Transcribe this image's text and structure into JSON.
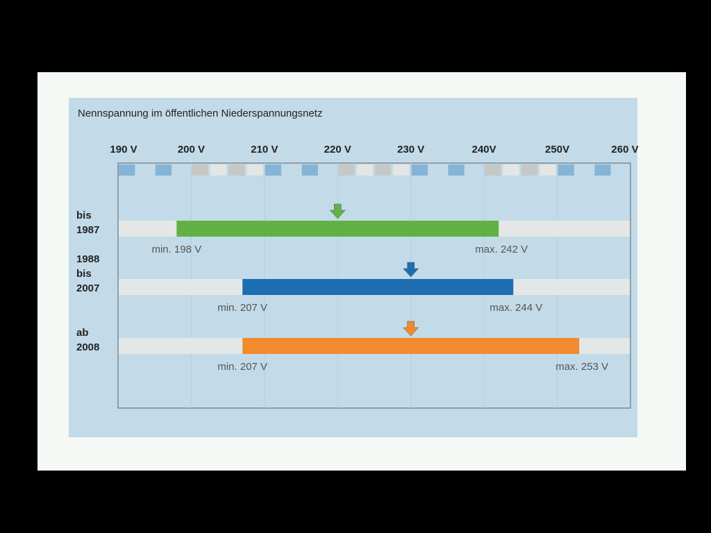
{
  "chart_data": {
    "type": "bar",
    "subtype": "range",
    "title": "Nennspannung im öffentlichen Niederspannungsnetz",
    "xlim": [
      190,
      260
    ],
    "ticks": [
      190,
      200,
      210,
      220,
      230,
      240,
      250,
      260
    ],
    "tick_labels": [
      "190 V",
      "200 V",
      "210 V",
      "220 V",
      "230 V",
      "240V",
      "250V",
      "260 V"
    ],
    "grid": true,
    "series": [
      {
        "label_lines": [
          "bis",
          "1987"
        ],
        "min": 198,
        "max": 242,
        "nominal": 220,
        "min_label": "min. 198 V",
        "max_label": "max. 242 V",
        "color": "#62b146"
      },
      {
        "label_lines": [
          "1988",
          "bis",
          "2007"
        ],
        "min": 207,
        "max": 244,
        "nominal": 230,
        "min_label": "min. 207 V",
        "max_label": "max. 244 V",
        "color": "#1f6db3"
      },
      {
        "label_lines": [
          "ab",
          "2008"
        ],
        "min": 207,
        "max": 253,
        "nominal": 230,
        "min_label": "min. 207 V",
        "max_label": "max. 253 V",
        "color": "#f28a2e"
      }
    ]
  }
}
